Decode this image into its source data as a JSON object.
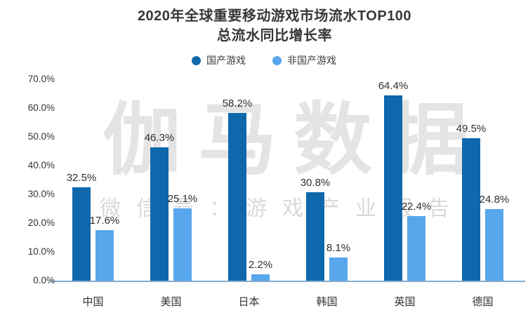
{
  "title": {
    "line1": "2020年全球重要移动游戏市场流水TOP100",
    "line2": "总流水同比增长率"
  },
  "legend": {
    "items": [
      {
        "key": "domestic-games",
        "label": "国产游戏",
        "color": "#1068AC"
      },
      {
        "key": "non-domestic-games",
        "label": "非国产游戏",
        "color": "#58A6EB"
      }
    ]
  },
  "watermark": {
    "main": "伽马数据",
    "sub": "微信号：游戏产业报告"
  },
  "colors": {
    "domestic_bar": "#1068AC",
    "non_domestic_bar": "#58A6EB",
    "axis_line": "#82ABCE",
    "title_text": "#383838",
    "label_text": "#303030",
    "watermark_main": "#E4E4E4",
    "watermark_sub": "#D9D9D9"
  },
  "chart_data": {
    "type": "bar",
    "title": "2020年全球重要移动游戏市场流水TOP100 总流水同比增长率",
    "categories": [
      "中国",
      "美国",
      "日本",
      "韩国",
      "英国",
      "德国"
    ],
    "series": [
      {
        "name": "国产游戏",
        "key": "domestic-games",
        "color": "#1068AC",
        "values": [
          32.5,
          46.3,
          58.2,
          30.8,
          64.4,
          49.5
        ]
      },
      {
        "name": "非国产游戏",
        "key": "non-domestic-games",
        "color": "#58A6EB",
        "values": [
          17.6,
          25.1,
          2.2,
          8.1,
          22.4,
          24.8
        ]
      }
    ],
    "value_label_suffix": "%",
    "xlabel": "",
    "ylabel": "",
    "ylim": [
      0,
      70
    ],
    "y_ticks": [
      "70.0%",
      "60.0%",
      "50.0%",
      "40.0%",
      "30.0%",
      "20.0%",
      "10.0%",
      "0.0%"
    ],
    "grid": false,
    "legend_position": "top",
    "value_labels_shown": true
  }
}
